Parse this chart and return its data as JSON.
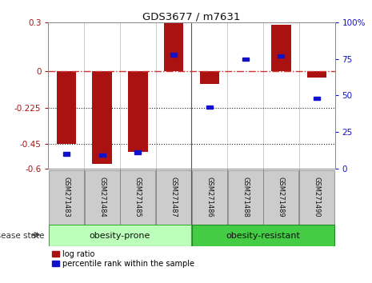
{
  "title": "GDS3677 / m7631",
  "samples": [
    "GSM271483",
    "GSM271484",
    "GSM271485",
    "GSM271487",
    "GSM271486",
    "GSM271488",
    "GSM271489",
    "GSM271490"
  ],
  "log_ratios": [
    -0.45,
    -0.57,
    -0.5,
    0.3,
    -0.08,
    0.0,
    0.285,
    -0.04
  ],
  "percentiles": [
    10,
    9,
    11,
    78,
    42,
    75,
    77,
    48
  ],
  "ylim_left": [
    -0.6,
    0.3
  ],
  "ylim_right": [
    0,
    100
  ],
  "yticks_left": [
    -0.6,
    -0.45,
    -0.225,
    0,
    0.3
  ],
  "yticks_right": [
    0,
    25,
    50,
    75,
    100
  ],
  "bar_color": "#aa1111",
  "dot_color": "#1111cc",
  "zero_line_color": "#cc3333",
  "dotted_line_color": "#222222",
  "group1_label": "obesity-prone",
  "group2_label": "obesity-resistant",
  "group1_color": "#bbffbb",
  "group2_color": "#44cc44",
  "disease_state_label": "disease state",
  "legend_bar_label": "log ratio",
  "legend_dot_label": "percentile rank within the sample",
  "sample_box_color": "#cccccc",
  "background_color": "#ffffff"
}
